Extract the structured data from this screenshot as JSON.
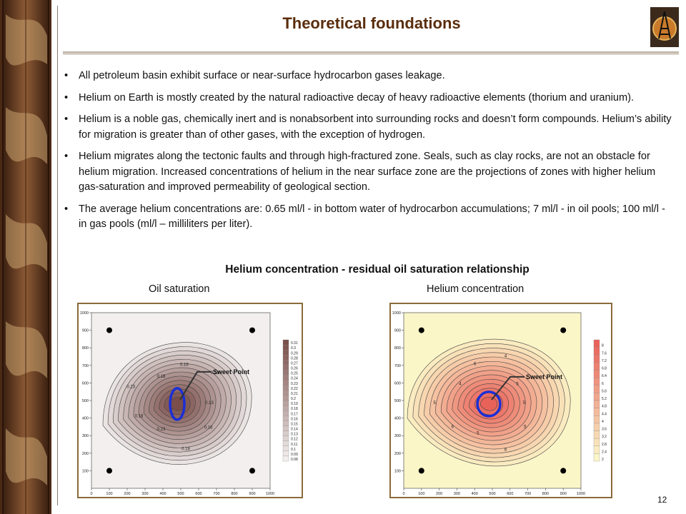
{
  "slide": {
    "title": "Theoretical foundations",
    "page_number": "12"
  },
  "bullets": [
    "All petroleum basin exhibit surface or near-surface hydrocarbon gases leakage.",
    "Helium on Earth is mostly created by the natural radioactive decay of heavy radioactive elements (thorium and uranium).",
    "Helium is a noble gas, chemically inert and is nonabsorbent into surrounding rocks and doesn’t form compounds. Helium’s ability for migration is greater than of other gases, with the exception of hydrogen.",
    " Helium migrates along the tectonic faults and through high-fractured zone. Seals, such as clay rocks, are not an obstacle for helium migration. Increased concentrations of helium in the near surface zone are the projections of zones with higher helium gas-saturation and improved permeability of geological section.",
    "The average helium concentrations are: 0.65 ml/l - in bottom water of hydrocarbon accumulations; 7 ml/l - in oil pools; 100 ml/l - in gas pools (ml/l – milliliters  per liter)."
  ],
  "section_heading": "Helium concentration - residual oil saturation relationship",
  "maps": {
    "left": {
      "caption": "Oil saturation",
      "annotation": "Sweet Point",
      "x_ticks": [
        "0",
        "100",
        "200",
        "300",
        "400",
        "500",
        "600",
        "700",
        "800",
        "900",
        "1000"
      ],
      "y_ticks": [
        "100",
        "200",
        "300",
        "400",
        "500",
        "600",
        "700",
        "800",
        "900",
        "1000"
      ],
      "scale_labels": [
        "0.31",
        "0.3",
        "0.29",
        "0.28",
        "0.27",
        "0.26",
        "0.25",
        "0.24",
        "0.23",
        "0.22",
        "0.21",
        "0.2",
        "0.19",
        "0.18",
        "0.17",
        "0.16",
        "0.15",
        "0.14",
        "0.13",
        "0.12",
        "0.11",
        "0.1",
        "0.09",
        "0.08"
      ],
      "contour_labels": [
        "0.13",
        "0.16",
        "0.18",
        "0.23",
        "0.18",
        "0.23",
        "0.18",
        "0.16",
        "0.13"
      ],
      "colors": {
        "low": "#f2efee",
        "high": "#7a4e4a"
      }
    },
    "right": {
      "caption": "Helium concentration",
      "annotation": "Sweet Point",
      "x_ticks": [
        "0",
        "100",
        "200",
        "300",
        "400",
        "500",
        "600",
        "700",
        "800",
        "900",
        "1000"
      ],
      "y_ticks": [
        "100",
        "200",
        "300",
        "400",
        "500",
        "600",
        "700",
        "800",
        "900",
        "1000"
      ],
      "scale_labels": [
        "8",
        "7.6",
        "7.2",
        "6.8",
        "6.4",
        "6",
        "5.6",
        "5.2",
        "4.8",
        "4.4",
        "4",
        "3.6",
        "3.2",
        "2.8",
        "2.4",
        "2"
      ],
      "contour_labels": [
        "5",
        "5",
        "6",
        "5",
        "6",
        "5",
        "4",
        "6",
        "4",
        "5"
      ],
      "colors": {
        "low": "#fbf6c8",
        "high": "#e9625a"
      }
    }
  },
  "wells": [
    [
      100,
      900
    ],
    [
      900,
      900
    ],
    [
      100,
      100
    ],
    [
      900,
      100
    ]
  ],
  "sweet_point": [
    480,
    480
  ],
  "accent_colors": {
    "title": "#5a2d0c",
    "frame": "#8b6b3a",
    "marker": "#1a2fd6"
  }
}
